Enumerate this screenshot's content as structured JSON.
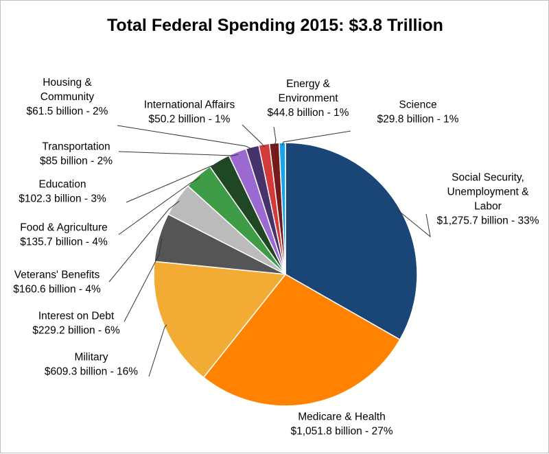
{
  "chart_data": {
    "type": "pie",
    "title": "Total Federal Spending 2015: $3.8 Trillion",
    "slices": [
      {
        "name": "Social Security, Unemployment & Labor",
        "value": 1275.7,
        "percent": 33,
        "label_lines": [
          "Social Security,",
          "Unemployment &",
          "Labor",
          "$1,275.7 billion - 33%"
        ],
        "color": "#1a4577"
      },
      {
        "name": "Medicare & Health",
        "value": 1051.8,
        "percent": 27,
        "label_lines": [
          "Medicare & Health",
          "$1,051.8 billion - 27%"
        ],
        "color": "#ff8200"
      },
      {
        "name": "Military",
        "value": 609.3,
        "percent": 16,
        "label_lines": [
          "Military",
          "$609.3 billion - 16%"
        ],
        "color": "#f2ac36"
      },
      {
        "name": "Interest on Debt",
        "value": 229.2,
        "percent": 6,
        "label_lines": [
          "Interest on Debt",
          "$229.2 billion - 6%"
        ],
        "color": "#555555"
      },
      {
        "name": "Veterans' Benefits",
        "value": 160.6,
        "percent": 4,
        "label_lines": [
          "Veterans' Benefits",
          "$160.6 billion - 4%"
        ],
        "color": "#bbbbbb"
      },
      {
        "name": "Food & Agriculture",
        "value": 135.7,
        "percent": 4,
        "label_lines": [
          "Food & Agriculture",
          "$135.7 billion - 4%"
        ],
        "color": "#3e9b46"
      },
      {
        "name": "Education",
        "value": 102.3,
        "percent": 3,
        "label_lines": [
          "Education",
          "$102.3 billion - 3%"
        ],
        "color": "#1f4724"
      },
      {
        "name": "Transportation",
        "value": 85,
        "percent": 2,
        "label_lines": [
          "Transportation",
          "$85 billion - 2%"
        ],
        "color": "#9b6ad0"
      },
      {
        "name": "Housing & Community",
        "value": 61.5,
        "percent": 2,
        "label_lines": [
          "Housing &",
          "Community",
          "$61.5 billion - 2%"
        ],
        "color": "#46336b"
      },
      {
        "name": "International Affairs",
        "value": 50.2,
        "percent": 1,
        "label_lines": [
          "International Affairs",
          "$50.2 billion - 1%"
        ],
        "color": "#d33a3a"
      },
      {
        "name": "Energy & Environment",
        "value": 44.8,
        "percent": 1,
        "label_lines": [
          "Energy &",
          "Environment",
          "$44.8 billion - 1%"
        ],
        "color": "#731a1a"
      },
      {
        "name": "Science",
        "value": 29.8,
        "percent": 1,
        "label_lines": [
          "Science",
          "$29.8 billion - 1%"
        ],
        "color": "#1aa3e8"
      }
    ],
    "legend": "none"
  }
}
